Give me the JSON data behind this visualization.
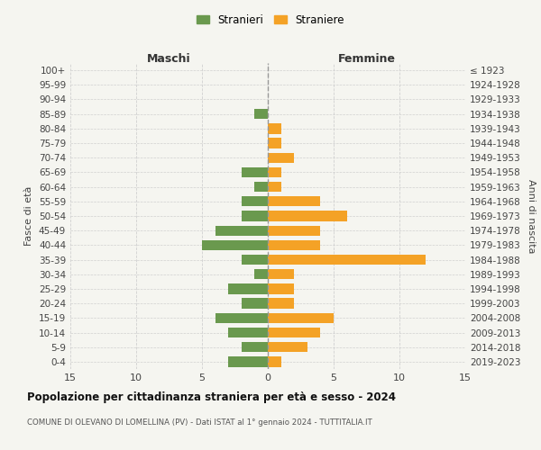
{
  "age_groups": [
    "100+",
    "95-99",
    "90-94",
    "85-89",
    "80-84",
    "75-79",
    "70-74",
    "65-69",
    "60-64",
    "55-59",
    "50-54",
    "45-49",
    "40-44",
    "35-39",
    "30-34",
    "25-29",
    "20-24",
    "15-19",
    "10-14",
    "5-9",
    "0-4"
  ],
  "birth_years": [
    "≤ 1923",
    "1924-1928",
    "1929-1933",
    "1934-1938",
    "1939-1943",
    "1944-1948",
    "1949-1953",
    "1954-1958",
    "1959-1963",
    "1964-1968",
    "1969-1973",
    "1974-1978",
    "1979-1983",
    "1984-1988",
    "1989-1993",
    "1994-1998",
    "1999-2003",
    "2004-2008",
    "2009-2013",
    "2014-2018",
    "2019-2023"
  ],
  "maschi": [
    0,
    0,
    0,
    1,
    0,
    0,
    0,
    2,
    1,
    2,
    2,
    4,
    5,
    2,
    1,
    3,
    2,
    4,
    3,
    2,
    3
  ],
  "femmine": [
    0,
    0,
    0,
    0,
    1,
    1,
    2,
    1,
    1,
    4,
    6,
    4,
    4,
    12,
    2,
    2,
    2,
    5,
    4,
    3,
    1
  ],
  "maschi_color": "#6a994e",
  "femmine_color": "#f4a226",
  "title": "Popolazione per cittadinanza straniera per età e sesso - 2024",
  "subtitle": "COMUNE DI OLEVANO DI LOMELLINA (PV) - Dati ISTAT al 1° gennaio 2024 - TUTTITALIA.IT",
  "header_left": "Maschi",
  "header_right": "Femmine",
  "ylabel_left": "Fasce di età",
  "ylabel_right": "Anni di nascita",
  "legend_maschi": "Stranieri",
  "legend_femmine": "Straniere",
  "xlim": 15,
  "background_color": "#f5f5f0",
  "grid_color": "#d0d0d0"
}
